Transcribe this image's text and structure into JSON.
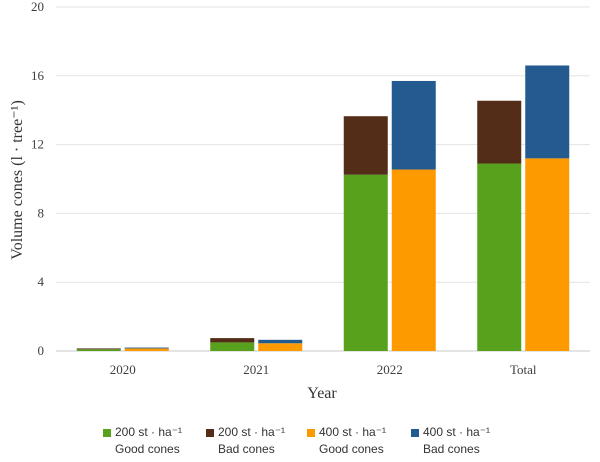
{
  "chart_data": {
    "type": "bar",
    "stacked": true,
    "categories": [
      "2020",
      "2021",
      "2022",
      "Total"
    ],
    "xlabel": "Year",
    "ylabel": "Volume cones (l · tree⁻¹)",
    "ylim": [
      0,
      20
    ],
    "yticks": [
      0,
      4,
      8,
      12,
      16,
      20
    ],
    "grid": true,
    "legend_position": "bottom",
    "series": [
      {
        "name": "200 st · ha⁻¹ Good cones",
        "label_line1": "200 st · ha⁻¹",
        "label_line2": "Good cones",
        "group": "200",
        "color": "#57a11c",
        "values": [
          0.1,
          0.5,
          10.25,
          10.9
        ]
      },
      {
        "name": "200 st · ha⁻¹ Bad cones",
        "label_line1": "200 st · ha⁻¹",
        "label_line2": "Bad cones",
        "group": "200",
        "color": "#542d18",
        "values": [
          0.05,
          0.25,
          3.4,
          3.65
        ]
      },
      {
        "name": "400 st · ha⁻¹ Good cones",
        "label_line1": "400 st · ha⁻¹",
        "label_line2": "Good cones",
        "group": "400",
        "color": "#fd9a00",
        "values": [
          0.15,
          0.45,
          10.55,
          11.2
        ]
      },
      {
        "name": "400 st · ha⁻¹ Bad cones",
        "label_line1": "400 st · ha⁻¹",
        "label_line2": "Bad cones",
        "group": "400",
        "color": "#235a8f",
        "values": [
          0.05,
          0.2,
          5.15,
          5.4
        ]
      }
    ]
  }
}
